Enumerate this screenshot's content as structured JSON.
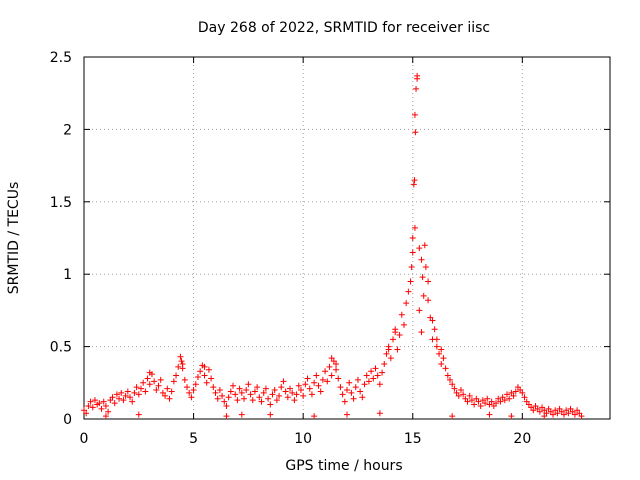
{
  "chart_data": {
    "type": "scatter",
    "title": "Day 268 of 2022, SRMTID for receiver iisc",
    "xlabel": "GPS time / hours",
    "ylabel": "SRMTID / TECUs",
    "xlim": [
      0,
      24
    ],
    "ylim": [
      0,
      2.5
    ],
    "xticks": [
      0,
      5,
      10,
      15,
      20
    ],
    "xtick_labels": [
      "0",
      "5",
      "10",
      "15",
      "20"
    ],
    "yticks": [
      0,
      0.5,
      1,
      1.5,
      2,
      2.5
    ],
    "ytick_labels": [
      "0",
      "0.5",
      "1",
      "1.5",
      "2",
      "2.5"
    ],
    "grid": true,
    "marker": "+",
    "color": "#ff0000",
    "series": [
      {
        "name": "iisc",
        "points": [
          [
            0.0,
            0.06
          ],
          [
            0.1,
            0.04
          ],
          [
            0.2,
            0.09
          ],
          [
            0.3,
            0.12
          ],
          [
            0.4,
            0.08
          ],
          [
            0.5,
            0.13
          ],
          [
            0.6,
            0.1
          ],
          [
            0.7,
            0.11
          ],
          [
            0.8,
            0.07
          ],
          [
            0.9,
            0.12
          ],
          [
            1.0,
            0.09
          ],
          [
            1.1,
            0.05
          ],
          [
            1.2,
            0.13
          ],
          [
            1.3,
            0.15
          ],
          [
            1.4,
            0.11
          ],
          [
            1.5,
            0.17
          ],
          [
            1.6,
            0.14
          ],
          [
            1.7,
            0.18
          ],
          [
            1.8,
            0.13
          ],
          [
            1.9,
            0.16
          ],
          [
            2.0,
            0.19
          ],
          [
            2.1,
            0.15
          ],
          [
            2.2,
            0.12
          ],
          [
            2.3,
            0.18
          ],
          [
            2.4,
            0.22
          ],
          [
            2.5,
            0.17
          ],
          [
            2.6,
            0.21
          ],
          [
            2.7,
            0.25
          ],
          [
            2.8,
            0.19
          ],
          [
            2.9,
            0.28
          ],
          [
            3.0,
            0.24
          ],
          [
            3.1,
            0.31
          ],
          [
            3.2,
            0.26
          ],
          [
            3.3,
            0.2
          ],
          [
            3.4,
            0.23
          ],
          [
            3.5,
            0.27
          ],
          [
            3.6,
            0.18
          ],
          [
            3.7,
            0.16
          ],
          [
            3.8,
            0.21
          ],
          [
            3.9,
            0.14
          ],
          [
            4.0,
            0.19
          ],
          [
            4.1,
            0.26
          ],
          [
            4.2,
            0.3
          ],
          [
            4.3,
            0.36
          ],
          [
            4.4,
            0.43
          ],
          [
            4.5,
            0.38
          ],
          [
            4.6,
            0.27
          ],
          [
            4.7,
            0.22
          ],
          [
            4.8,
            0.18
          ],
          [
            4.9,
            0.15
          ],
          [
            5.0,
            0.2
          ],
          [
            5.1,
            0.24
          ],
          [
            5.2,
            0.29
          ],
          [
            5.3,
            0.33
          ],
          [
            5.4,
            0.37
          ],
          [
            5.5,
            0.3
          ],
          [
            5.6,
            0.25
          ],
          [
            5.7,
            0.34
          ],
          [
            5.8,
            0.28
          ],
          [
            5.9,
            0.22
          ],
          [
            6.0,
            0.18
          ],
          [
            6.1,
            0.14
          ],
          [
            6.2,
            0.2
          ],
          [
            6.3,
            0.16
          ],
          [
            6.4,
            0.12
          ],
          [
            6.5,
            0.09
          ],
          [
            6.6,
            0.15
          ],
          [
            6.7,
            0.19
          ],
          [
            6.8,
            0.23
          ],
          [
            6.9,
            0.17
          ],
          [
            7.0,
            0.13
          ],
          [
            7.1,
            0.21
          ],
          [
            7.2,
            0.18
          ],
          [
            7.3,
            0.14
          ],
          [
            7.4,
            0.2
          ],
          [
            7.5,
            0.24
          ],
          [
            7.6,
            0.17
          ],
          [
            7.7,
            0.13
          ],
          [
            7.8,
            0.19
          ],
          [
            7.9,
            0.22
          ],
          [
            8.0,
            0.15
          ],
          [
            8.1,
            0.12
          ],
          [
            8.2,
            0.18
          ],
          [
            8.3,
            0.21
          ],
          [
            8.4,
            0.14
          ],
          [
            8.5,
            0.1
          ],
          [
            8.6,
            0.17
          ],
          [
            8.7,
            0.2
          ],
          [
            8.8,
            0.13
          ],
          [
            8.9,
            0.16
          ],
          [
            9.0,
            0.22
          ],
          [
            9.1,
            0.26
          ],
          [
            9.2,
            0.19
          ],
          [
            9.3,
            0.15
          ],
          [
            9.4,
            0.21
          ],
          [
            9.5,
            0.18
          ],
          [
            9.6,
            0.13
          ],
          [
            9.7,
            0.17
          ],
          [
            9.8,
            0.23
          ],
          [
            9.9,
            0.2
          ],
          [
            10.0,
            0.16
          ],
          [
            10.1,
            0.24
          ],
          [
            10.2,
            0.28
          ],
          [
            10.3,
            0.21
          ],
          [
            10.4,
            0.17
          ],
          [
            10.5,
            0.25
          ],
          [
            10.6,
            0.3
          ],
          [
            10.7,
            0.23
          ],
          [
            10.8,
            0.19
          ],
          [
            10.9,
            0.27
          ],
          [
            11.0,
            0.33
          ],
          [
            11.1,
            0.26
          ],
          [
            11.2,
            0.36
          ],
          [
            11.3,
            0.3
          ],
          [
            11.4,
            0.4
          ],
          [
            11.5,
            0.34
          ],
          [
            11.6,
            0.28
          ],
          [
            11.7,
            0.22
          ],
          [
            11.8,
            0.17
          ],
          [
            11.9,
            0.12
          ],
          [
            12.0,
            0.2
          ],
          [
            12.1,
            0.25
          ],
          [
            12.2,
            0.18
          ],
          [
            12.3,
            0.14
          ],
          [
            12.4,
            0.22
          ],
          [
            12.5,
            0.27
          ],
          [
            12.6,
            0.19
          ],
          [
            12.7,
            0.15
          ],
          [
            12.8,
            0.24
          ],
          [
            12.9,
            0.3
          ],
          [
            13.0,
            0.26
          ],
          [
            13.1,
            0.33
          ],
          [
            13.2,
            0.28
          ],
          [
            13.3,
            0.35
          ],
          [
            13.4,
            0.3
          ],
          [
            13.5,
            0.24
          ],
          [
            13.6,
            0.32
          ],
          [
            13.7,
            0.38
          ],
          [
            13.8,
            0.45
          ],
          [
            13.9,
            0.5
          ],
          [
            14.0,
            0.42
          ],
          [
            14.1,
            0.55
          ],
          [
            14.2,
            0.62
          ],
          [
            14.3,
            0.48
          ],
          [
            14.4,
            0.58
          ],
          [
            14.5,
            0.72
          ],
          [
            14.6,
            0.65
          ],
          [
            14.7,
            0.8
          ],
          [
            14.8,
            0.88
          ],
          [
            14.9,
            0.95
          ],
          [
            15.0,
            1.15
          ],
          [
            15.1,
            1.32
          ],
          [
            15.2,
            2.35
          ],
          [
            15.3,
            0.75
          ],
          [
            15.4,
            0.6
          ],
          [
            15.5,
            0.85
          ],
          [
            15.6,
            1.05
          ],
          [
            15.7,
            0.95
          ],
          [
            15.8,
            0.7
          ],
          [
            15.9,
            0.55
          ],
          [
            16.0,
            0.62
          ],
          [
            16.1,
            0.5
          ],
          [
            16.2,
            0.45
          ],
          [
            16.3,
            0.38
          ],
          [
            16.4,
            0.42
          ],
          [
            16.5,
            0.35
          ],
          [
            16.6,
            0.3
          ],
          [
            16.7,
            0.27
          ],
          [
            16.8,
            0.24
          ],
          [
            16.9,
            0.21
          ],
          [
            17.0,
            0.18
          ],
          [
            17.1,
            0.16
          ],
          [
            17.2,
            0.2
          ],
          [
            17.3,
            0.17
          ],
          [
            17.4,
            0.14
          ],
          [
            17.5,
            0.12
          ],
          [
            17.6,
            0.16
          ],
          [
            17.7,
            0.13
          ],
          [
            17.8,
            0.1
          ],
          [
            17.9,
            0.14
          ],
          [
            18.0,
            0.12
          ],
          [
            18.1,
            0.09
          ],
          [
            18.2,
            0.13
          ],
          [
            18.3,
            0.11
          ],
          [
            18.4,
            0.14
          ],
          [
            18.5,
            0.1
          ],
          [
            18.6,
            0.12
          ],
          [
            18.7,
            0.09
          ],
          [
            18.8,
            0.11
          ],
          [
            18.9,
            0.14
          ],
          [
            19.0,
            0.12
          ],
          [
            19.1,
            0.15
          ],
          [
            19.2,
            0.13
          ],
          [
            19.3,
            0.17
          ],
          [
            19.4,
            0.14
          ],
          [
            19.5,
            0.18
          ],
          [
            19.6,
            0.16
          ],
          [
            19.7,
            0.19
          ],
          [
            19.8,
            0.22
          ],
          [
            19.9,
            0.2
          ],
          [
            20.0,
            0.18
          ],
          [
            20.1,
            0.15
          ],
          [
            20.2,
            0.12
          ],
          [
            20.3,
            0.1
          ],
          [
            20.4,
            0.08
          ],
          [
            20.5,
            0.06
          ],
          [
            20.6,
            0.09
          ],
          [
            20.7,
            0.07
          ],
          [
            20.8,
            0.05
          ],
          [
            20.9,
            0.08
          ],
          [
            21.0,
            0.06
          ],
          [
            21.1,
            0.04
          ],
          [
            21.2,
            0.07
          ],
          [
            21.3,
            0.05
          ],
          [
            21.4,
            0.03
          ],
          [
            21.5,
            0.06
          ],
          [
            21.6,
            0.04
          ],
          [
            21.7,
            0.07
          ],
          [
            21.8,
            0.05
          ],
          [
            21.9,
            0.03
          ],
          [
            22.0,
            0.06
          ],
          [
            22.1,
            0.04
          ],
          [
            22.2,
            0.07
          ],
          [
            22.3,
            0.05
          ],
          [
            22.4,
            0.03
          ],
          [
            22.5,
            0.06
          ],
          [
            22.6,
            0.04
          ],
          [
            22.7,
            0.02
          ],
          [
            15.05,
            1.62
          ],
          [
            15.1,
            2.1
          ],
          [
            15.15,
            2.28
          ],
          [
            15.12,
            1.98
          ],
          [
            15.08,
            1.65
          ],
          [
            15.2,
            2.37
          ],
          [
            15.0,
            1.25
          ],
          [
            15.3,
            1.18
          ],
          [
            15.4,
            1.1
          ],
          [
            15.55,
            1.2
          ],
          [
            15.45,
            0.98
          ],
          [
            14.95,
            1.05
          ],
          [
            4.45,
            0.4
          ],
          [
            4.5,
            0.35
          ],
          [
            11.3,
            0.42
          ],
          [
            11.5,
            0.38
          ],
          [
            5.5,
            0.36
          ],
          [
            3.0,
            0.32
          ],
          [
            13.9,
            0.48
          ],
          [
            14.2,
            0.6
          ],
          [
            16.1,
            0.55
          ],
          [
            16.3,
            0.48
          ],
          [
            15.7,
            0.82
          ],
          [
            15.9,
            0.68
          ],
          [
            1.0,
            0.02
          ],
          [
            2.5,
            0.03
          ],
          [
            6.5,
            0.02
          ],
          [
            7.2,
            0.03
          ],
          [
            12.0,
            0.03
          ],
          [
            13.5,
            0.04
          ],
          [
            16.8,
            0.02
          ],
          [
            18.5,
            0.03
          ],
          [
            19.5,
            0.02
          ],
          [
            21.0,
            0.02
          ],
          [
            8.5,
            0.03
          ],
          [
            10.5,
            0.02
          ]
        ]
      }
    ]
  }
}
